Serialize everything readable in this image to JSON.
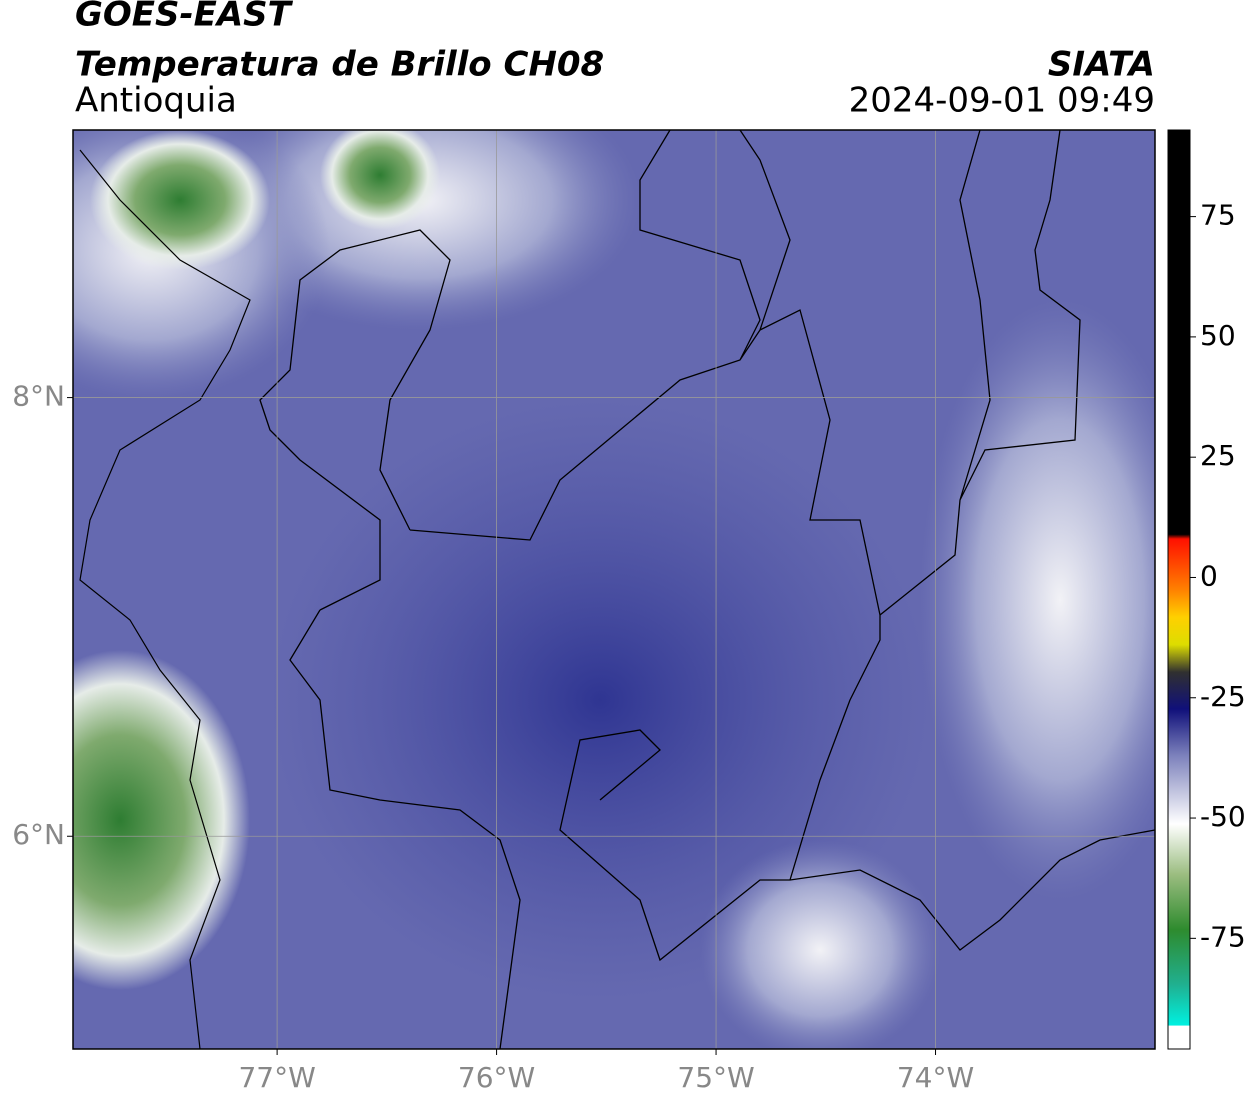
{
  "header": {
    "title": "GOES-EAST",
    "subtitle": "Temperatura de Brillo CH08",
    "region": "Antioquia",
    "source": "SIATA",
    "timestamp": "2024-09-01 09:49"
  },
  "map": {
    "xlim": [
      -77.93,
      -73.0
    ],
    "ylim": [
      5.03,
      9.22
    ],
    "xticks": [
      {
        "value": -77,
        "label": "77°W"
      },
      {
        "value": -76,
        "label": "76°W"
      },
      {
        "value": -75,
        "label": "75°W"
      },
      {
        "value": -74,
        "label": "74°W"
      }
    ],
    "yticks": [
      {
        "value": 8,
        "label": "8°N"
      },
      {
        "value": 6,
        "label": "6°N"
      }
    ],
    "grid": true
  },
  "colorbar": {
    "lim": [
      -98,
      93
    ],
    "ticks": [
      75,
      50,
      25,
      0,
      -25,
      -50,
      -75
    ]
  }
}
